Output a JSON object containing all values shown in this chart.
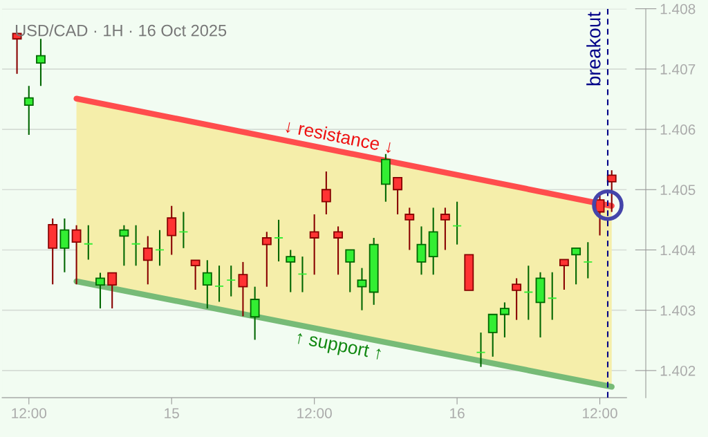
{
  "chart_data": {
    "type": "candlestick",
    "title": "USD/CAD · 1H · 16 Oct 2025",
    "x": [
      "2025-10-14T11:00",
      "2025-10-14T12:00",
      "2025-10-14T13:00",
      "2025-10-14T14:00",
      "2025-10-14T15:00",
      "2025-10-14T16:00",
      "2025-10-14T17:00",
      "2025-10-14T18:00",
      "2025-10-14T19:00",
      "2025-10-14T20:00",
      "2025-10-14T21:00",
      "2025-10-14T22:00",
      "2025-10-14T23:00",
      "2025-10-15T00:00",
      "2025-10-15T01:00",
      "2025-10-15T02:00",
      "2025-10-15T03:00",
      "2025-10-15T04:00",
      "2025-10-15T05:00",
      "2025-10-15T06:00",
      "2025-10-15T07:00",
      "2025-10-15T08:00",
      "2025-10-15T09:00",
      "2025-10-15T10:00",
      "2025-10-15T11:00",
      "2025-10-15T12:00",
      "2025-10-15T13:00",
      "2025-10-15T14:00",
      "2025-10-15T15:00",
      "2025-10-15T16:00",
      "2025-10-15T17:00",
      "2025-10-15T18:00",
      "2025-10-15T19:00",
      "2025-10-15T20:00",
      "2025-10-15T21:00",
      "2025-10-15T22:00",
      "2025-10-15T23:00",
      "2025-10-16T00:00",
      "2025-10-16T01:00",
      "2025-10-16T02:00",
      "2025-10-16T03:00",
      "2025-10-16T04:00",
      "2025-10-16T05:00",
      "2025-10-16T06:00",
      "2025-10-16T07:00",
      "2025-10-16T08:00",
      "2025-10-16T09:00",
      "2025-10-16T10:00",
      "2025-10-16T11:00",
      "2025-10-16T12:00",
      "2025-10-16T13:00"
    ],
    "ohlc": [
      [
        1.40759,
        1.4076,
        1.40692,
        1.4075
      ],
      [
        1.4064,
        1.40672,
        1.40591,
        1.40652
      ],
      [
        1.4071,
        1.4075,
        1.40672,
        1.40722
      ],
      [
        1.40442,
        1.40452,
        1.40343,
        1.40403
      ],
      [
        1.40403,
        1.40452,
        1.40363,
        1.40433
      ],
      [
        1.40433,
        1.40441,
        1.40343,
        1.40413
      ],
      [
        1.4041,
        1.40441,
        1.40384,
        1.4041
      ],
      [
        1.40342,
        1.40362,
        1.40303,
        1.40353
      ],
      [
        1.40362,
        1.40362,
        1.40303,
        1.40342
      ],
      [
        1.40423,
        1.40441,
        1.40374,
        1.40433
      ],
      [
        1.4041,
        1.40441,
        1.40374,
        1.4041
      ],
      [
        1.40403,
        1.40423,
        1.40343,
        1.40383
      ],
      [
        1.404,
        1.40433,
        1.40374,
        1.404
      ],
      [
        1.40453,
        1.40473,
        1.40392,
        1.40424
      ],
      [
        1.4043,
        1.40463,
        1.40403,
        1.4043
      ],
      [
        1.40383,
        1.40383,
        1.40334,
        1.40374
      ],
      [
        1.40342,
        1.40383,
        1.40303,
        1.40362
      ],
      [
        1.4034,
        1.40374,
        1.40314,
        1.4034
      ],
      [
        1.4035,
        1.40374,
        1.40323,
        1.4035
      ],
      [
        1.40359,
        1.4038,
        1.4029,
        1.40339
      ],
      [
        1.40289,
        1.40339,
        1.40251,
        1.40318
      ],
      [
        1.4042,
        1.4043,
        1.40339,
        1.40409
      ],
      [
        1.4042,
        1.4045,
        1.40381,
        1.4042
      ],
      [
        1.4038,
        1.404,
        1.4033,
        1.40389
      ],
      [
        1.4036,
        1.40389,
        1.4033,
        1.4036
      ],
      [
        1.4043,
        1.40459,
        1.40359,
        1.4042
      ],
      [
        1.405,
        1.4053,
        1.40459,
        1.4048
      ],
      [
        1.4043,
        1.40439,
        1.40359,
        1.4042
      ],
      [
        1.4038,
        1.404,
        1.4033,
        1.404
      ],
      [
        1.40339,
        1.4037,
        1.403,
        1.4035
      ],
      [
        1.4033,
        1.4042,
        1.40309,
        1.40409
      ],
      [
        1.40509,
        1.40559,
        1.4048,
        1.4055
      ],
      [
        1.4052,
        1.4052,
        1.40459,
        1.405
      ],
      [
        1.40459,
        1.4047,
        1.404,
        1.4045
      ],
      [
        1.4038,
        1.40439,
        1.40359,
        1.40409
      ],
      [
        1.40389,
        1.4047,
        1.40359,
        1.4043
      ],
      [
        1.40459,
        1.4047,
        1.404,
        1.4045
      ],
      [
        1.4044,
        1.4048,
        1.40409,
        1.4044
      ],
      [
        1.40392,
        1.40392,
        1.40333,
        1.40333
      ],
      [
        1.4023,
        1.40263,
        1.40206,
        1.4023
      ],
      [
        1.40263,
        1.40293,
        1.40223,
        1.40293
      ],
      [
        1.40293,
        1.40313,
        1.40255,
        1.40303
      ],
      [
        1.40343,
        1.40353,
        1.40284,
        1.40333
      ],
      [
        1.4033,
        1.40374,
        1.40284,
        1.4033
      ],
      [
        1.40313,
        1.40363,
        1.40255,
        1.40353
      ],
      [
        1.4032,
        1.40363,
        1.40284,
        1.4032
      ],
      [
        1.40384,
        1.40384,
        1.40334,
        1.40374
      ],
      [
        1.40392,
        1.40403,
        1.40343,
        1.40403
      ],
      [
        1.4038,
        1.40413,
        1.40353,
        1.4038
      ],
      [
        1.40483,
        1.40492,
        1.40424,
        1.40463
      ],
      [
        1.40524,
        1.40532,
        1.40463,
        1.40513
      ]
    ],
    "colors": [
      "#ff3333",
      "#33ee33",
      "#33ee33",
      "#ff3333",
      "#33ee33",
      "#ff3333",
      "#33ee33",
      "#33ee33",
      "#ff3333",
      "#33ee33",
      "#33ee33",
      "#ff3333",
      "#33ee33",
      "#ff3333",
      "#33ee33",
      "#ff3333",
      "#33ee33",
      "#33ee33",
      "#33ee33",
      "#ff3333",
      "#33ee33",
      "#ff3333",
      "#33ee33",
      "#33ee33",
      "#33ee33",
      "#ff3333",
      "#ff3333",
      "#ff3333",
      "#33ee33",
      "#33ee33",
      "#33ee33",
      "#33ee33",
      "#ff3333",
      "#ff3333",
      "#33ee33",
      "#33ee33",
      "#ff3333",
      "#33ee33",
      "#ff3333",
      "#33ee33",
      "#33ee33",
      "#33ee33",
      "#ff3333",
      "#33ee33",
      "#33ee33",
      "#33ee33",
      "#ff3333",
      "#33ee33",
      "#33ee33",
      "#ff3333",
      "#ff3333"
    ],
    "series": [
      {
        "name": "↓ resistance ↓",
        "type": "line",
        "color": "#ff4d4d",
        "x": [
          "2025-10-14T16:00",
          "2025-10-16T13:00"
        ],
        "values": [
          1.40651,
          1.40473
        ],
        "lower": [
          1.40348,
          1.40173
        ],
        "upper": [
          1.40651,
          1.40473
        ]
      },
      {
        "name": "↑ support ↑",
        "type": "line",
        "color": "#77bb77",
        "x": [
          "2025-10-14T16:00",
          "2025-10-16T13:00"
        ],
        "values": [
          1.40348,
          1.40173
        ]
      }
    ],
    "ref_lines": [
      {
        "axis": "x",
        "value": "2025-10-16T12:40",
        "label": "breakout",
        "color": "#000088",
        "line_style": "dashed"
      }
    ],
    "xlim": [
      "2025-10-14T09:45",
      "2025-10-16T14:15"
    ],
    "xticks": [
      {
        "value": "2025-10-14T12:00",
        "label": "12:00"
      },
      {
        "value": "2025-10-15T00:00",
        "label": "15"
      },
      {
        "value": "2025-10-15T12:00",
        "label": "12:00"
      },
      {
        "value": "2025-10-16T00:00",
        "label": "16"
      },
      {
        "value": "2025-10-16T12:00",
        "label": "12:00"
      }
    ],
    "ylim": [
      1.40155,
      1.408
    ],
    "yticks": [
      1.402,
      1.403,
      1.404,
      1.405,
      1.406,
      1.407,
      1.408
    ],
    "grid": "y"
  }
}
